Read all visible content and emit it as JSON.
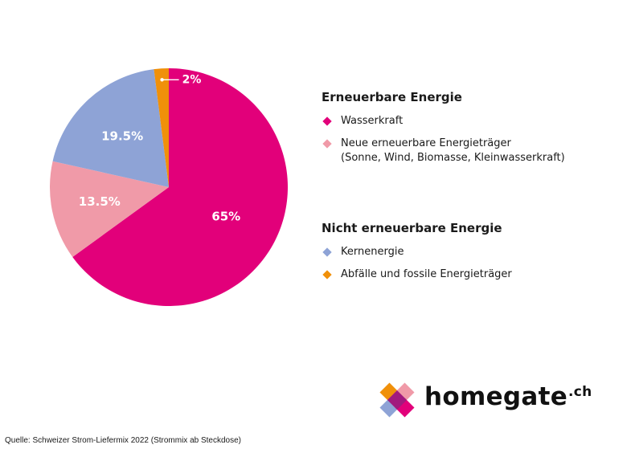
{
  "chart_data": {
    "type": "pie",
    "slices": [
      {
        "label": "Wasserkraft",
        "value": 65,
        "display": "65%",
        "color": "#e2007a"
      },
      {
        "label": "Neue erneuerbare Energieträger (Sonne, Wind, Biomasse, Kleinwasserkraft)",
        "value": 13.5,
        "display": "13.5%",
        "color": "#f09aa8"
      },
      {
        "label": "Kernenergie",
        "value": 19.5,
        "display": "19.5%",
        "color": "#8ea3d6"
      },
      {
        "label": "Abfälle und fossile Energieträger",
        "value": 2,
        "display": "2%",
        "color": "#f0900a"
      }
    ]
  },
  "legend": {
    "groups": [
      {
        "heading": "Erneuerbare Energie",
        "items": [
          {
            "lines": [
              "Wasserkraft"
            ],
            "color": "#e2007a"
          },
          {
            "lines": [
              "Neue erneuerbare Energieträger",
              "(Sonne, Wind, Biomasse, Kleinwasserkraft)"
            ],
            "color": "#f09aa8"
          }
        ]
      },
      {
        "heading": "Nicht erneuerbare Energie",
        "items": [
          {
            "lines": [
              "Kernenergie"
            ],
            "color": "#8ea3d6"
          },
          {
            "lines": [
              "Abfälle und fossile Energieträger"
            ],
            "color": "#f0900a"
          }
        ]
      }
    ]
  },
  "logo": {
    "word": "homegate",
    "suffix": ".ch"
  },
  "source": "Quelle: Schweizer Strom-Liefermix 2022  (Strommix ab Steckdose)"
}
